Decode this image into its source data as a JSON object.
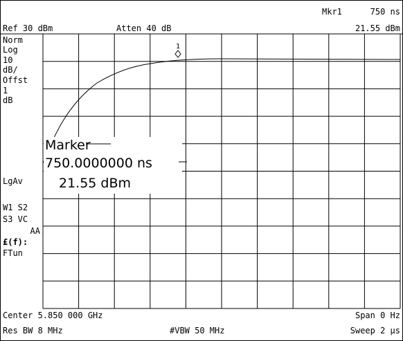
{
  "header": {
    "marker_label": "Mkr1",
    "marker_x": "750 ns",
    "ref": "Ref 30 dBm",
    "atten": "Atten 40 dB",
    "marker_y": "21.55 dBm"
  },
  "side_panel": [
    "Norm",
    "Log",
    "10",
    "dB/",
    "Offst",
    "1",
    "dB",
    "LgAv",
    "W1  S2",
    "S3  VC",
    "AA",
    "£(f):",
    "FTun"
  ],
  "marker_box": {
    "title": "Marker",
    "x": "750.0000000 ns",
    "y": "21.55 dBm"
  },
  "marker_number": "1",
  "footer": {
    "center": "Center 5.850 000 GHz",
    "span": "Span 0 Hz",
    "res_bw": "Res BW 8 MHz",
    "vbw": "#VBW 50 MHz",
    "sweep": "Sweep 2 μs"
  }
}
